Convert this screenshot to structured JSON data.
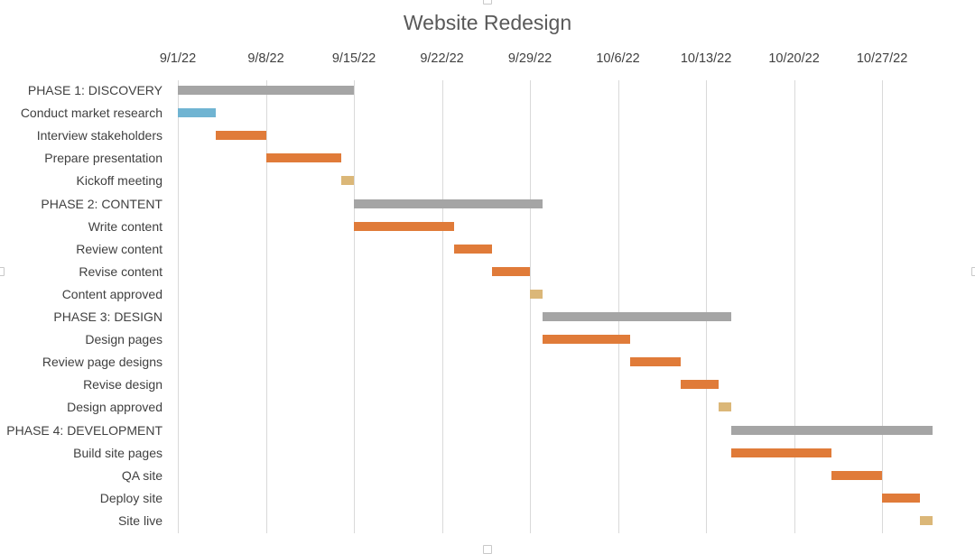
{
  "chart_data": {
    "type": "bar",
    "subtype": "gantt",
    "title": "Website Redesign",
    "xlabel": "",
    "ylabel": "",
    "x_axis_position": "top",
    "x_ticks": [
      "9/1/22",
      "9/8/22",
      "9/15/22",
      "9/22/22",
      "9/29/22",
      "10/6/22",
      "10/13/22",
      "10/20/22",
      "10/27/22"
    ],
    "x_range_days": [
      0,
      63
    ],
    "start_date": "9/1/22",
    "grid": true,
    "legend": "none",
    "colors": {
      "phase": "#a5a5a5",
      "start": "#70b4d2",
      "task": "#e07b39",
      "milestone": "#dbb778"
    },
    "categories": [
      "PHASE 1: DISCOVERY",
      "Conduct market research",
      "Interview stakeholders",
      "Prepare presentation",
      "Kickoff meeting",
      "PHASE 2: CONTENT",
      "Write content",
      "Review content",
      "Revise content",
      "Content approved",
      "PHASE 3: DESIGN",
      "Design pages",
      "Review page designs",
      "Revise design",
      "Design approved",
      "PHASE 4: DEVELOPMENT",
      "Build site pages",
      "QA site",
      "Deploy site",
      "Site live"
    ],
    "tasks": [
      {
        "name": "PHASE 1: DISCOVERY",
        "start_day": 0,
        "duration": 14,
        "kind": "phase"
      },
      {
        "name": "Conduct market research",
        "start_day": 0,
        "duration": 3,
        "kind": "start"
      },
      {
        "name": "Interview stakeholders",
        "start_day": 3,
        "duration": 4,
        "kind": "task"
      },
      {
        "name": "Prepare presentation",
        "start_day": 7,
        "duration": 6,
        "kind": "task"
      },
      {
        "name": "Kickoff meeting",
        "start_day": 13,
        "duration": 1,
        "kind": "milestone"
      },
      {
        "name": "PHASE 2: CONTENT",
        "start_day": 14,
        "duration": 15,
        "kind": "phase"
      },
      {
        "name": "Write content",
        "start_day": 14,
        "duration": 8,
        "kind": "task"
      },
      {
        "name": "Review content",
        "start_day": 22,
        "duration": 3,
        "kind": "task"
      },
      {
        "name": "Revise content",
        "start_day": 25,
        "duration": 3,
        "kind": "task"
      },
      {
        "name": "Content approved",
        "start_day": 28,
        "duration": 1,
        "kind": "milestone"
      },
      {
        "name": "PHASE 3: DESIGN",
        "start_day": 29,
        "duration": 15,
        "kind": "phase"
      },
      {
        "name": "Design pages",
        "start_day": 29,
        "duration": 7,
        "kind": "task"
      },
      {
        "name": "Review page designs",
        "start_day": 36,
        "duration": 4,
        "kind": "task"
      },
      {
        "name": "Revise design",
        "start_day": 40,
        "duration": 3,
        "kind": "task"
      },
      {
        "name": "Design approved",
        "start_day": 43,
        "duration": 1,
        "kind": "milestone"
      },
      {
        "name": "PHASE 4: DEVELOPMENT",
        "start_day": 44,
        "duration": 16,
        "kind": "phase"
      },
      {
        "name": "Build site pages",
        "start_day": 44,
        "duration": 8,
        "kind": "task"
      },
      {
        "name": "QA site",
        "start_day": 52,
        "duration": 4,
        "kind": "task"
      },
      {
        "name": "Deploy site",
        "start_day": 56,
        "duration": 3,
        "kind": "task"
      },
      {
        "name": "Site live",
        "start_day": 59,
        "duration": 1,
        "kind": "milestone"
      }
    ]
  }
}
